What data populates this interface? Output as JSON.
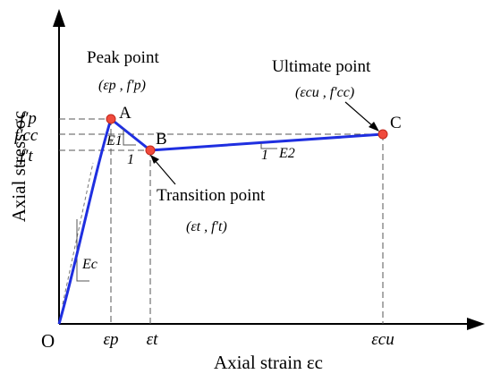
{
  "chart_data": {
    "type": "line",
    "title": "",
    "xlabel": "Axial strain εc",
    "ylabel": "Axial stress σc",
    "origin_label": "O",
    "x_ticks": [
      "εp",
      "εt",
      "εcu"
    ],
    "y_ticks": [
      "f′p",
      "f′cc",
      "f′t"
    ],
    "series": [
      {
        "points": [
          {
            "x": "O",
            "y": "0"
          },
          {
            "x": "εp",
            "y": "f′p"
          },
          {
            "x": "εt",
            "y": "f′t"
          },
          {
            "x": "εcu",
            "y": "f′cc"
          }
        ]
      }
    ],
    "points": [
      {
        "marker": "A",
        "name": "Peak point",
        "coords": "(εp , f′p)"
      },
      {
        "marker": "B",
        "name": "Transition point",
        "coords": "(εt , f′t)"
      },
      {
        "marker": "C",
        "name": "Ultimate point",
        "coords": "(εcu , f′cc)"
      }
    ],
    "slope_labels": {
      "initial": "Ec",
      "descending": "E1",
      "descending_run": "1",
      "hardening": "E2",
      "hardening_run": "1"
    }
  }
}
